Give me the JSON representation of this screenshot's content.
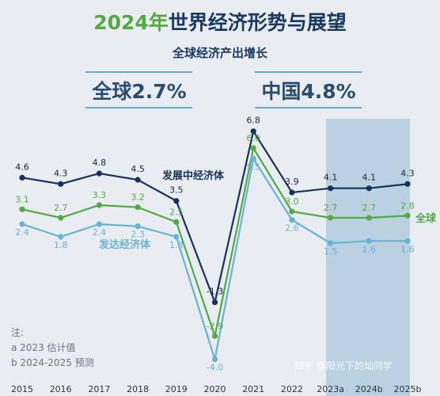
{
  "title_prefix": "2024年",
  "title_main": "世界经济形势与展望",
  "subtitle": "全球经济产出增长",
  "highlights": [
    {
      "label": "全球2.7%"
    },
    {
      "label": "中国4.8%"
    }
  ],
  "notes": {
    "header": "注:",
    "a": "a 2023 估计值",
    "b": "b 2024-2025 预测"
  },
  "watermark": "知乎 @阳光下的灿同学",
  "colors": {
    "developing": "#15325a",
    "world": "#54a845",
    "developed": "#68b3d2",
    "title_green": "#57a845",
    "title_blue": "#1b3a63",
    "forecast_band": "#a9c7dc"
  },
  "chart_data": {
    "type": "line",
    "categories": [
      "2015",
      "2016",
      "2017",
      "2018",
      "2019",
      "2020",
      "2021",
      "2022",
      "2023a",
      "2024b",
      "2025b"
    ],
    "ylim": [
      -4.8,
      7.5
    ],
    "forecast_from": "2023a",
    "series": [
      {
        "name": "发展中经济体",
        "key": "developing",
        "values": [
          4.6,
          4.3,
          4.8,
          4.5,
          3.5,
          -1.3,
          6.8,
          3.9,
          4.1,
          4.1,
          4.3
        ]
      },
      {
        "name": "全球",
        "key": "world",
        "values": [
          3.1,
          2.7,
          3.3,
          3.2,
          2.5,
          -2.9,
          6.0,
          3.0,
          2.7,
          2.7,
          2.8
        ]
      },
      {
        "name": "发达经济体",
        "key": "developed",
        "values": [
          2.4,
          1.8,
          2.4,
          2.3,
          1.8,
          -4.0,
          5.5,
          2.6,
          1.5,
          1.6,
          1.6
        ]
      }
    ]
  }
}
